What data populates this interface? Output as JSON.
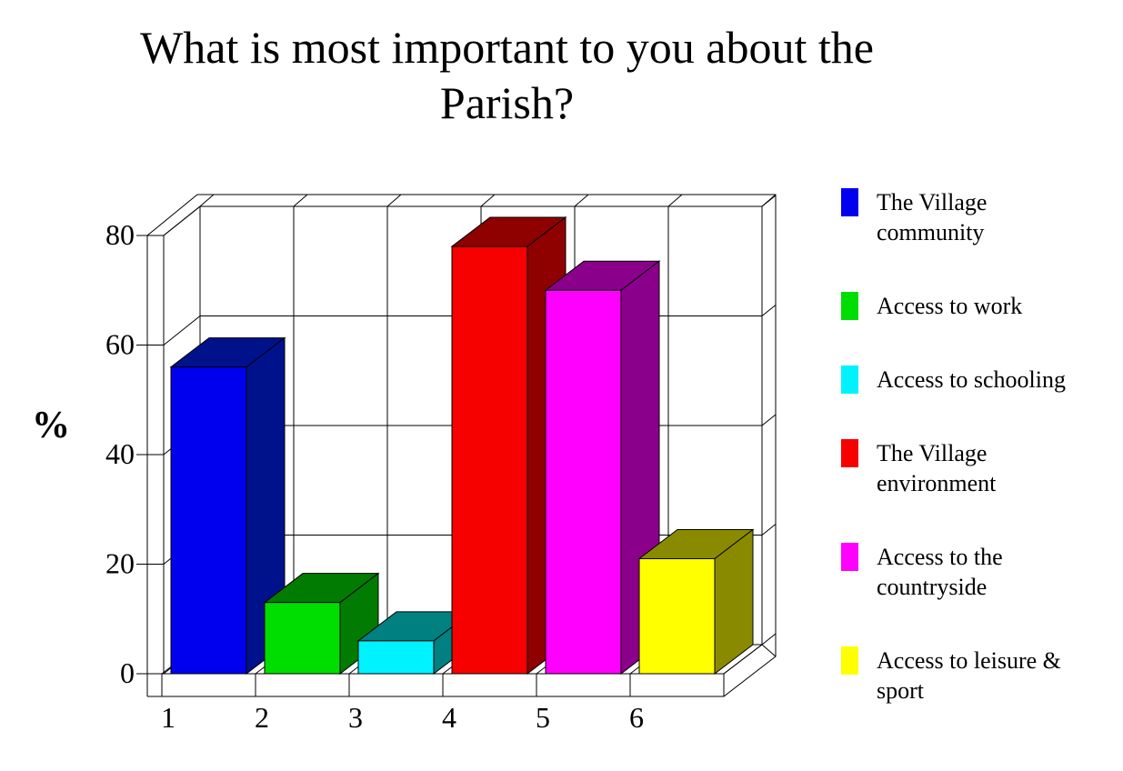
{
  "title": "What is most important to you about the\nParish?",
  "chart_data": {
    "type": "bar",
    "style": "3d-column",
    "title": "What is most important to you about the Parish?",
    "categories": [
      "1",
      "2",
      "3",
      "4",
      "5",
      "6"
    ],
    "values": [
      56,
      13,
      6,
      78,
      70,
      21
    ],
    "bar_colors": [
      "#0000EE",
      "#00DD00",
      "#00F2FF",
      "#F70000",
      "#FF00FF",
      "#FFFF00"
    ],
    "bar_shade_colors": [
      "#00128B",
      "#017B01",
      "#008080",
      "#8F0000",
      "#8B008B",
      "#8A8A00"
    ],
    "category_legend": [
      "The Village community",
      "Access to work",
      "Access to schooling",
      "The Village environment",
      "Access to the countryside",
      "Access to leisure & sport"
    ],
    "xlabel": "",
    "ylabel": "%",
    "ylim": [
      0,
      80
    ],
    "yticks": [
      0,
      20,
      40,
      60,
      80
    ],
    "grid": true,
    "walls": "white",
    "legend_position": "right"
  },
  "legend": {
    "items": [
      {
        "label": "The Village\ncommunity",
        "color": "#0000EE"
      },
      {
        "label": "Access to work",
        "color": "#00DD00"
      },
      {
        "label": "Access to schooling",
        "color": "#00F2FF"
      },
      {
        "label": "The Village\nenvironment",
        "color": "#F70000"
      },
      {
        "label": "Access to the\ncountryside",
        "color": "#FF00FF"
      },
      {
        "label": "Access to leisure &\nsport",
        "color": "#FFFF00"
      }
    ]
  }
}
